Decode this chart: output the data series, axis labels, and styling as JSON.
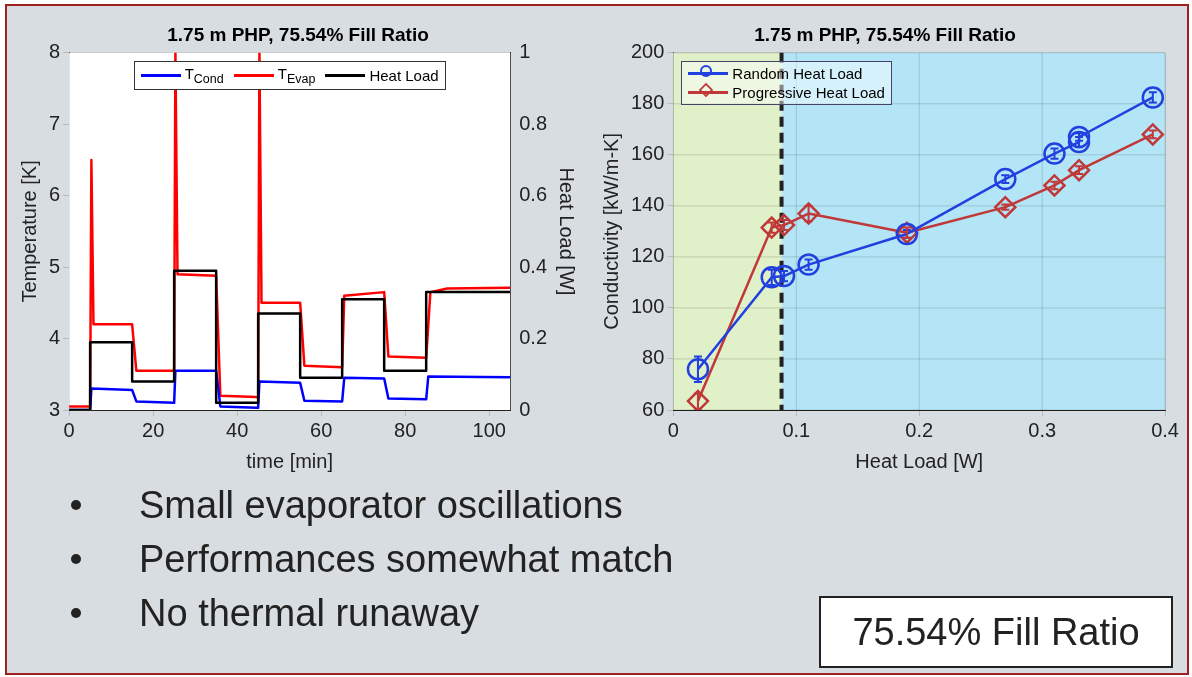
{
  "chart_data": [
    {
      "type": "line",
      "title": "1.75 m PHP, 75.54% Fill Ratio",
      "xlabel": "time [min]",
      "ylabel": "Temperature [K]",
      "y2label": "Heat Load [W]",
      "xlim": [
        0,
        105
      ],
      "xticks": [
        0,
        20,
        40,
        60,
        80,
        100
      ],
      "ylim": [
        3,
        8
      ],
      "yticks": [
        3,
        4,
        5,
        6,
        7,
        8
      ],
      "y2lim": [
        0,
        1
      ],
      "y2ticks": [
        0,
        0.2,
        0.4,
        0.6,
        0.8,
        1
      ],
      "grid": true,
      "legend": "top",
      "marker": "none",
      "series": [
        {
          "name": "T$_{Cond}$",
          "color": "#0000ff",
          "x": [
            0,
            5,
            5.3,
            15,
            16,
            25,
            25.3,
            35,
            36,
            45,
            45.3,
            55,
            56,
            65,
            65.5,
            75,
            76,
            85,
            85.5,
            105
          ],
          "values": [
            3.0,
            3.0,
            3.3,
            3.28,
            3.12,
            3.1,
            3.55,
            3.55,
            3.05,
            3.03,
            3.4,
            3.38,
            3.13,
            3.12,
            3.45,
            3.44,
            3.16,
            3.15,
            3.47,
            3.46
          ]
        },
        {
          "name": "T$_{Evap}$",
          "color": "#ff0000",
          "x": [
            0,
            5,
            5.3,
            5.8,
            15,
            16,
            25,
            25.3,
            25.8,
            35,
            36,
            45,
            45.3,
            45.8,
            55,
            56,
            65,
            65.5,
            75,
            76,
            85,
            86,
            90,
            105
          ],
          "values": [
            3.05,
            3.05,
            6.5,
            4.2,
            4.2,
            3.55,
            3.55,
            8,
            4.9,
            4.88,
            3.2,
            3.18,
            8,
            4.5,
            4.5,
            3.62,
            3.6,
            4.6,
            4.65,
            3.75,
            3.73,
            4.65,
            4.7,
            4.71
          ]
        },
        {
          "name": "Heat Load",
          "color": "#000000",
          "type": "step",
          "axis": "y2",
          "x": [
            0,
            5,
            15,
            25,
            35,
            45,
            55,
            65,
            75,
            85,
            105
          ],
          "values": [
            0,
            0.19,
            0.08,
            0.39,
            0.02,
            0.27,
            0.09,
            0.31,
            0.11,
            0.33,
            0.33
          ]
        }
      ]
    },
    {
      "type": "line",
      "title": "1.75 m PHP, 75.54% Fill Ratio",
      "xlabel": "Heat Load [W]",
      "ylabel": "Conductivity [kW/m-K]",
      "xlim": [
        0,
        0.4
      ],
      "xticks": [
        0,
        0.1,
        0.2,
        0.3,
        0.4
      ],
      "ylim": [
        60,
        200
      ],
      "yticks": [
        60,
        80,
        100,
        120,
        140,
        160,
        180,
        200
      ],
      "grid": true,
      "legend": "top left",
      "line_style": "solid",
      "bands": [
        {
          "axis": "x",
          "from": 0,
          "to": 0.088,
          "color": "#e0f0c8"
        },
        {
          "axis": "x",
          "from": 0.088,
          "to": 0.4,
          "color": "#b3e5f7"
        }
      ],
      "ref_lines": [
        {
          "axis": "x",
          "value": 0.088,
          "color": "#222222",
          "line_style": "dashed"
        }
      ],
      "series": [
        {
          "name": "Random Heat Load",
          "color": "#2040e0",
          "marker": "circle",
          "x": [
            0.02,
            0.08,
            0.09,
            0.11,
            0.19,
            0.27,
            0.31,
            0.33,
            0.33,
            0.39
          ],
          "values": [
            76,
            112,
            112.5,
            117,
            129,
            150.5,
            160.5,
            165,
            167,
            182.5
          ],
          "errors": [
            5,
            3,
            2,
            2,
            1.5,
            1.5,
            2,
            2,
            1.5,
            2
          ]
        },
        {
          "name": "Progressive Heat Load",
          "color": "#c03838",
          "marker": "diamond",
          "x": [
            0.02,
            0.08,
            0.09,
            0.11,
            0.19,
            0.27,
            0.31,
            0.33,
            0.39
          ],
          "values": [
            63.5,
            131.5,
            132.5,
            137,
            129.5,
            139.5,
            148,
            154,
            168
          ],
          "errors": [
            3,
            2,
            2,
            3,
            2,
            1,
            1.5,
            1.5,
            1.5
          ]
        }
      ]
    },
    {
      "type": "other",
      "annotations": [
        "Small evaporator oscillations",
        "Performances somewhat match",
        "No thermal runaway",
        "75.54% Fill Ratio"
      ]
    }
  ]
}
